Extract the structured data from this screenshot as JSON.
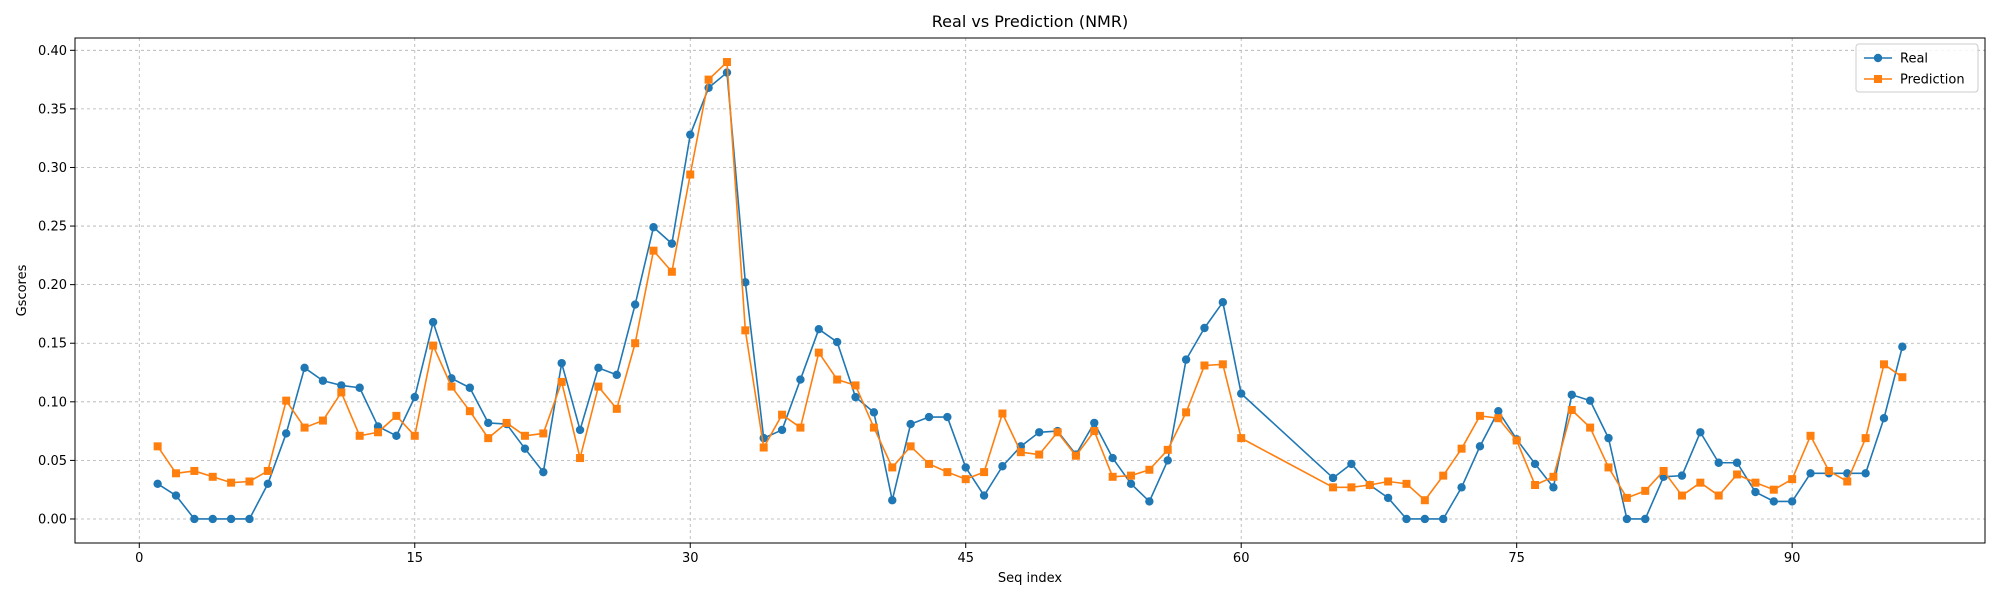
{
  "chart_data": {
    "type": "line",
    "title": "Real vs Prediction (NMR)",
    "xlabel": "Seq index",
    "ylabel": "Gscores",
    "xlim": [
      -3.5,
      100.5
    ],
    "ylim": [
      -0.0205,
      0.4105
    ],
    "xticks": [
      0,
      15,
      30,
      45,
      60,
      75,
      90
    ],
    "yticks": [
      0.0,
      0.05,
      0.1,
      0.15,
      0.2,
      0.25,
      0.3,
      0.35,
      0.4
    ],
    "grid": true,
    "legend_position": "top-right",
    "x": [
      1,
      2,
      3,
      4,
      5,
      6,
      7,
      8,
      9,
      10,
      11,
      12,
      13,
      14,
      15,
      16,
      17,
      18,
      19,
      20,
      21,
      22,
      23,
      24,
      25,
      26,
      27,
      28,
      29,
      30,
      31,
      32,
      33,
      34,
      35,
      36,
      37,
      38,
      39,
      40,
      41,
      42,
      43,
      44,
      45,
      46,
      47,
      48,
      49,
      50,
      51,
      52,
      53,
      54,
      55,
      56,
      57,
      58,
      59,
      60,
      65,
      66,
      67,
      68,
      69,
      70,
      71,
      72,
      73,
      74,
      75,
      76,
      77,
      78,
      79,
      80,
      81,
      82,
      83,
      84,
      85,
      86,
      87,
      88,
      89,
      90,
      91,
      92,
      93,
      94,
      95,
      96
    ],
    "series": [
      {
        "name": "Real",
        "color": "#1f77b4",
        "marker": "circle",
        "values": [
          0.03,
          0.02,
          0.0,
          0.0,
          0.0,
          0.0,
          0.03,
          0.073,
          0.129,
          0.118,
          0.114,
          0.112,
          0.079,
          0.071,
          0.104,
          0.168,
          0.12,
          0.112,
          0.082,
          0.081,
          0.06,
          0.04,
          0.133,
          0.076,
          0.129,
          0.123,
          0.183,
          0.249,
          0.235,
          0.328,
          0.368,
          0.381,
          0.202,
          0.069,
          0.076,
          0.119,
          0.162,
          0.151,
          0.104,
          0.091,
          0.016,
          0.081,
          0.087,
          0.087,
          0.044,
          0.02,
          0.045,
          0.062,
          0.074,
          0.075,
          0.055,
          0.082,
          0.052,
          0.03,
          0.015,
          0.05,
          0.136,
          0.163,
          0.185,
          0.107,
          0.035,
          0.047,
          0.029,
          0.018,
          0.0,
          0.0,
          0.0,
          0.027,
          0.062,
          0.092,
          0.068,
          0.047,
          0.027,
          0.106,
          0.101,
          0.069,
          0.0,
          0.0,
          0.036,
          0.037,
          0.074,
          0.048,
          0.048,
          0.023,
          0.015,
          0.015,
          0.039,
          0.039,
          0.039,
          0.039,
          0.086,
          0.147
        ]
      },
      {
        "name": "Prediction",
        "color": "#ff7f0e",
        "marker": "square",
        "values": [
          0.062,
          0.039,
          0.041,
          0.036,
          0.031,
          0.032,
          0.041,
          0.101,
          0.078,
          0.084,
          0.108,
          0.071,
          0.074,
          0.088,
          0.071,
          0.148,
          0.113,
          0.092,
          0.069,
          0.082,
          0.071,
          0.073,
          0.117,
          0.052,
          0.113,
          0.094,
          0.15,
          0.229,
          0.211,
          0.294,
          0.375,
          0.39,
          0.161,
          0.061,
          0.089,
          0.078,
          0.142,
          0.119,
          0.114,
          0.078,
          0.044,
          0.062,
          0.047,
          0.04,
          0.034,
          0.04,
          0.09,
          0.057,
          0.055,
          0.074,
          0.054,
          0.075,
          0.036,
          0.037,
          0.042,
          0.059,
          0.091,
          0.131,
          0.132,
          0.069,
          0.027,
          0.027,
          0.029,
          0.032,
          0.03,
          0.016,
          0.037,
          0.06,
          0.088,
          0.086,
          0.067,
          0.029,
          0.036,
          0.093,
          0.078,
          0.044,
          0.018,
          0.024,
          0.041,
          0.02,
          0.031,
          0.02,
          0.038,
          0.031,
          0.025,
          0.034,
          0.071,
          0.041,
          0.032,
          0.069,
          0.132,
          0.121
        ]
      }
    ]
  }
}
